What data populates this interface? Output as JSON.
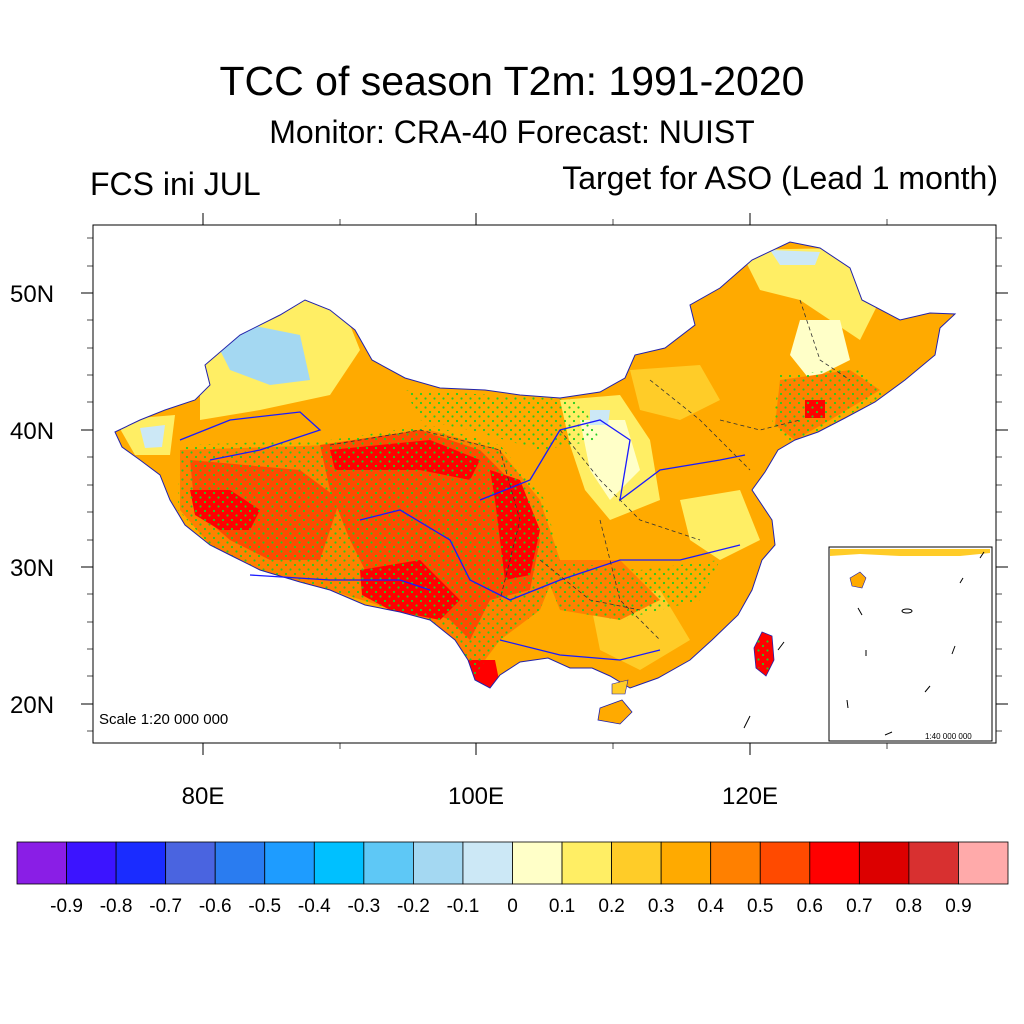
{
  "title": "TCC of season T2m: 1991-2020",
  "subtitle": "Monitor: CRA-40   Forecast: NUIST",
  "left_label": "FCS ini JUL",
  "right_label": "Target for ASO (Lead 1 month)",
  "map": {
    "lat_labels": [
      "50N",
      "40N",
      "30N",
      "20N"
    ],
    "lon_labels": [
      "80E",
      "100E",
      "120E"
    ],
    "scale_main": "Scale 1:20 000 000",
    "scale_inset": "1:40 000 000",
    "stipple_color": "#22cc22",
    "river_color": "#1a1aff",
    "border_color": "#333333"
  },
  "colorbar": {
    "colors": [
      "#8a1ee6",
      "#3c14ff",
      "#1a2cff",
      "#4a64e0",
      "#2a7cf0",
      "#1e9cff",
      "#00c0ff",
      "#5ec8f6",
      "#a4d8f2",
      "#cce8f6",
      "#ffffc8",
      "#ffee64",
      "#ffcc28",
      "#ffaa00",
      "#ff8000",
      "#ff4a00",
      "#ff0000",
      "#dc0000",
      "#d83030",
      "#ffaaaa"
    ],
    "labels": [
      "-0.9",
      "-0.8",
      "-0.7",
      "-0.6",
      "-0.5",
      "-0.4",
      "-0.3",
      "-0.2",
      "-0.1",
      "0",
      "0.1",
      "0.2",
      "0.3",
      "0.4",
      "0.5",
      "0.6",
      "0.7",
      "0.8",
      "0.9"
    ]
  }
}
